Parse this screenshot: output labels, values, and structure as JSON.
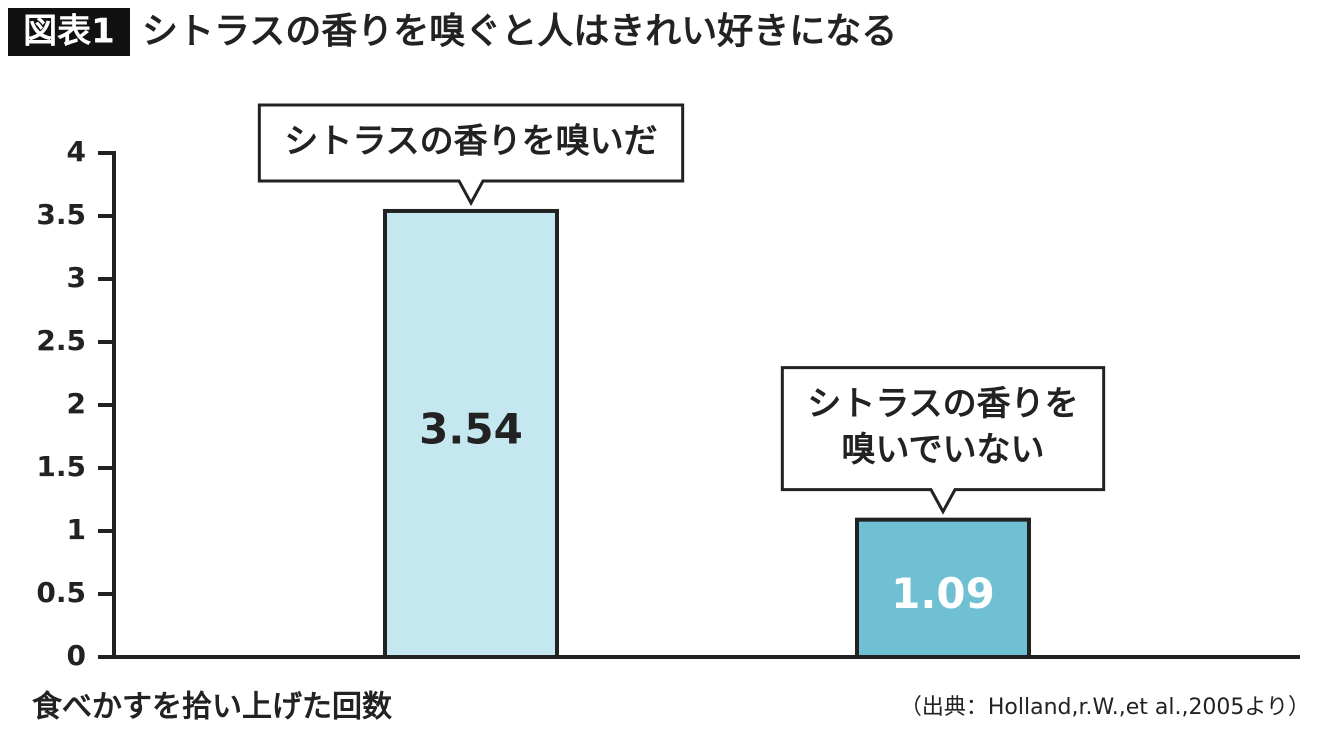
{
  "chart_data": {
    "type": "bar",
    "badge": "図表1",
    "title": "シトラスの香りを嗅ぐと人はきれい好きになる",
    "y_label": "食べかすを拾い上げた回数",
    "source": "（出典：Holland,r.W.,et al.,2005より）",
    "categories": [
      [
        "シトラスの香りを嗅いだ"
      ],
      [
        "シトラスの香りを",
        "嗅いでいない"
      ]
    ],
    "values": [
      3.54,
      1.09
    ],
    "colors": [
      "#c5e8f0",
      "#6fc0d2"
    ],
    "ylim": [
      0,
      4
    ],
    "yticks": [
      0,
      0.5,
      1,
      1.5,
      2,
      2.5,
      3,
      3.5,
      4
    ]
  }
}
